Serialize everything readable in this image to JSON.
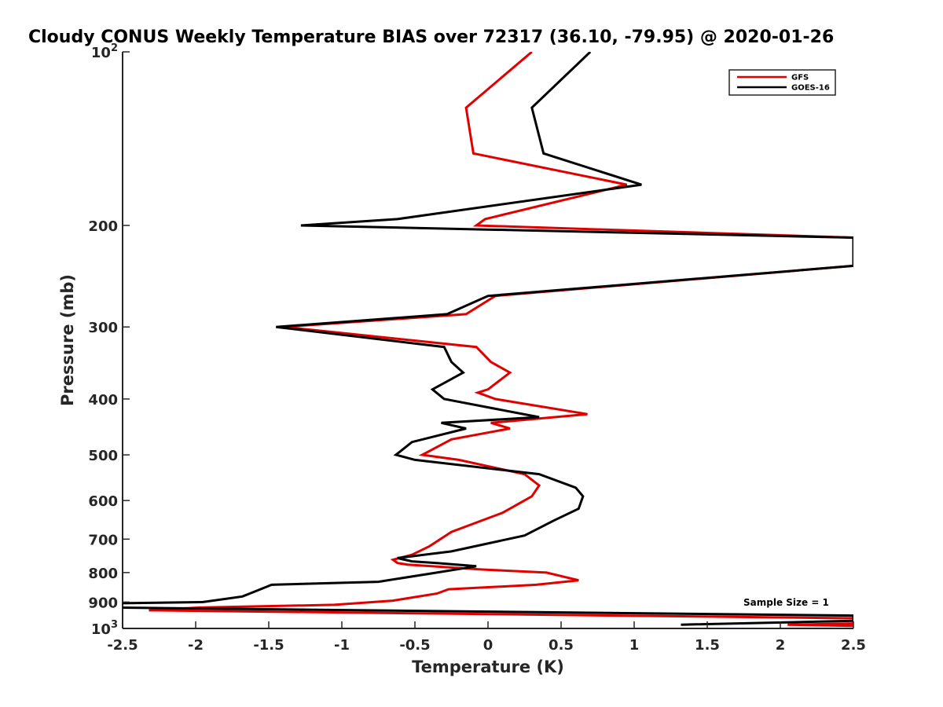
{
  "chart_data": {
    "type": "line",
    "title": "Cloudy CONUS Weekly Temperature BIAS over 72317 (36.10, -79.95) @ 2020-01-26",
    "xlabel": "Temperature (K)",
    "ylabel": "Pressure (mb)",
    "xlim": [
      -2.5,
      2.5
    ],
    "ylim": [
      100,
      1000
    ],
    "y_scale": "log",
    "y_reversed": true,
    "grid": false,
    "legend_position": "top-right",
    "x_ticks": [
      "-2.5",
      "-2",
      "-1.5",
      "-1",
      "-0.5",
      "0",
      "0.5",
      "1",
      "1.5",
      "2",
      "2.5"
    ],
    "y_ticks": [
      {
        "value": 100,
        "base": "10",
        "exp": "2"
      },
      {
        "value": 200,
        "label": "200"
      },
      {
        "value": 300,
        "label": "300"
      },
      {
        "value": 400,
        "label": "400"
      },
      {
        "value": 500,
        "label": "500"
      },
      {
        "value": 600,
        "label": "600"
      },
      {
        "value": 700,
        "label": "700"
      },
      {
        "value": 800,
        "label": "800"
      },
      {
        "value": 900,
        "label": "900"
      },
      {
        "value": 1000,
        "base": "10",
        "exp": "3"
      }
    ],
    "annotation": "Sample Size = 1",
    "series": [
      {
        "name": "GFS",
        "color": "#e00000",
        "points": [
          [
            0.3,
            100
          ],
          [
            -0.15,
            125
          ],
          [
            -0.1,
            150
          ],
          [
            0.95,
            170
          ],
          [
            -0.02,
            195
          ],
          [
            -0.08,
            200
          ],
          [
            2.5,
            210
          ],
          [
            2.5,
            235
          ],
          [
            0.05,
            265
          ],
          [
            -0.15,
            285
          ],
          [
            -1.4,
            300
          ],
          [
            -0.08,
            325
          ],
          [
            0.02,
            345
          ],
          [
            0.15,
            360
          ],
          [
            0.0,
            385
          ],
          [
            -0.07,
            390
          ],
          [
            0.05,
            400
          ],
          [
            0.68,
            425
          ],
          [
            0.02,
            440
          ],
          [
            0.15,
            450
          ],
          [
            -0.25,
            470
          ],
          [
            -0.45,
            500
          ],
          [
            -0.2,
            510
          ],
          [
            0.25,
            540
          ],
          [
            0.35,
            565
          ],
          [
            0.3,
            590
          ],
          [
            0.1,
            630
          ],
          [
            -0.25,
            680
          ],
          [
            -0.4,
            720
          ],
          [
            -0.52,
            745
          ],
          [
            -0.65,
            760
          ],
          [
            -0.62,
            770
          ],
          [
            -0.55,
            775
          ],
          [
            -0.05,
            790
          ],
          [
            0.4,
            800
          ],
          [
            0.62,
            825
          ],
          [
            0.33,
            840
          ],
          [
            -0.27,
            855
          ],
          [
            -0.35,
            870
          ],
          [
            -0.65,
            895
          ],
          [
            -1.05,
            910
          ],
          [
            -1.97,
            920
          ],
          [
            -2.32,
            930
          ],
          [
            2.5,
            960
          ],
          [
            2.5,
            980
          ],
          [
            2.05,
            985
          ],
          [
            2.5,
            990
          ]
        ]
      },
      {
        "name": "GOES-16",
        "color": "#000000",
        "points": [
          [
            0.7,
            100
          ],
          [
            0.3,
            125
          ],
          [
            0.38,
            150
          ],
          [
            1.05,
            170
          ],
          [
            -0.62,
            195
          ],
          [
            -1.28,
            200
          ],
          [
            2.5,
            210
          ],
          [
            2.5,
            235
          ],
          [
            0.0,
            265
          ],
          [
            -0.28,
            285
          ],
          [
            -1.45,
            300
          ],
          [
            -0.3,
            325
          ],
          [
            -0.25,
            345
          ],
          [
            -0.17,
            360
          ],
          [
            -0.38,
            385
          ],
          [
            -0.3,
            400
          ],
          [
            0.35,
            430
          ],
          [
            -0.32,
            440
          ],
          [
            -0.15,
            450
          ],
          [
            -0.52,
            475
          ],
          [
            -0.63,
            500
          ],
          [
            -0.5,
            510
          ],
          [
            0.35,
            540
          ],
          [
            0.6,
            570
          ],
          [
            0.65,
            590
          ],
          [
            0.62,
            620
          ],
          [
            0.45,
            650
          ],
          [
            0.25,
            690
          ],
          [
            -0.25,
            735
          ],
          [
            -0.62,
            755
          ],
          [
            -0.52,
            765
          ],
          [
            -0.35,
            770
          ],
          [
            -0.08,
            780
          ],
          [
            -0.35,
            800
          ],
          [
            -0.75,
            830
          ],
          [
            -1.48,
            840
          ],
          [
            -1.58,
            860
          ],
          [
            -1.68,
            880
          ],
          [
            -1.95,
            900
          ],
          [
            -2.6,
            905
          ],
          [
            -2.55,
            920
          ],
          [
            2.5,
            950
          ],
          [
            2.5,
            970
          ],
          [
            1.32,
            985
          ]
        ]
      }
    ]
  }
}
